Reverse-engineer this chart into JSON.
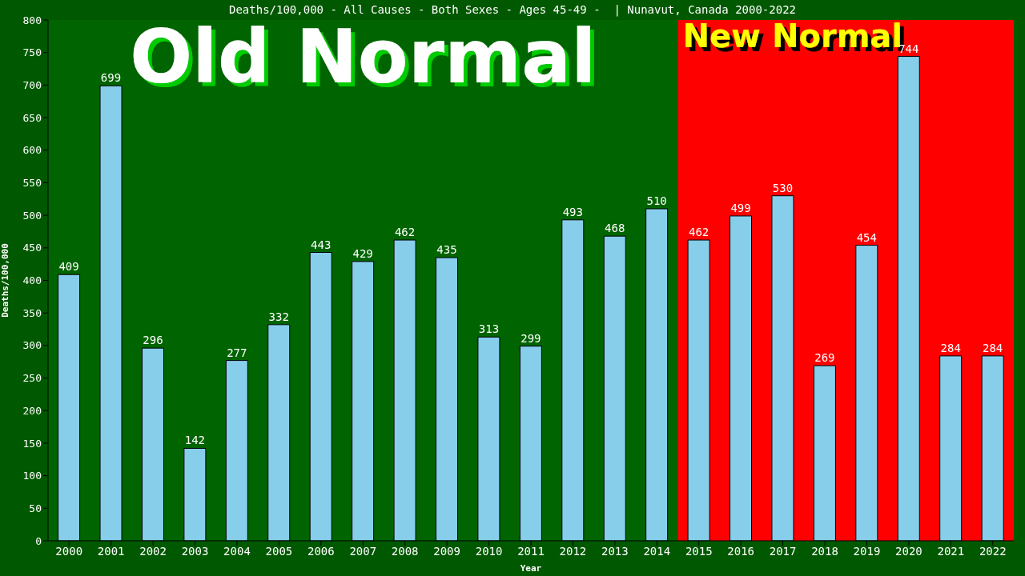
{
  "chart_data": {
    "type": "bar",
    "title": "Deaths/100,000 - All Causes - Both Sexes - Ages 45-49 -  | Nunavut, Canada 2000-2022",
    "xlabel": "Year",
    "ylabel": "Deaths/100,000",
    "categories": [
      "2000",
      "2001",
      "2002",
      "2003",
      "2004",
      "2005",
      "2006",
      "2007",
      "2008",
      "2009",
      "2010",
      "2011",
      "2012",
      "2013",
      "2014",
      "2015",
      "2016",
      "2017",
      "2018",
      "2019",
      "2020",
      "2021",
      "2022"
    ],
    "values": [
      409,
      699,
      296,
      142,
      277,
      332,
      443,
      429,
      462,
      435,
      313,
      299,
      493,
      468,
      510,
      462,
      499,
      530,
      269,
      454,
      744,
      284,
      284
    ],
    "color": "#87ceeb",
    "ylim": [
      0,
      800
    ],
    "yticks": [
      0,
      50,
      100,
      150,
      200,
      250,
      300,
      350,
      400,
      450,
      500,
      550,
      600,
      650,
      700,
      750,
      800
    ],
    "grid": false,
    "data_labels": true,
    "legend": false,
    "bands": [
      {
        "axis": "x",
        "from": "2000",
        "to": "2014",
        "label": "Old Normal",
        "color": "#006400"
      },
      {
        "axis": "x",
        "from": "2015",
        "to": "2022",
        "label": "New Normal",
        "color": "#ff0000"
      }
    ]
  }
}
